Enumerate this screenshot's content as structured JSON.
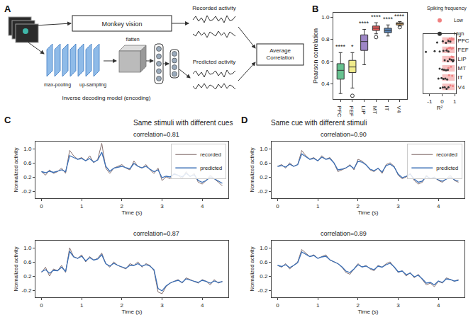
{
  "figure": {
    "panel_labels": [
      "A",
      "B",
      "C",
      "D"
    ]
  },
  "diagram": {
    "center_box": "Monkey vision",
    "outputs": {
      "recorded": "Recorded activity",
      "predicted": "Predicted activity"
    },
    "end_box": "Average Correlation",
    "layers": [
      "max-pooling",
      "up-sampling",
      "flatten"
    ],
    "caption": "Inverse decoding model (encoding)"
  },
  "chart_data": [
    {
      "type": "box",
      "ylabel": "Pearson correlation",
      "categories": [
        "PFC",
        "FEF",
        "LIP",
        "MT",
        "IT",
        "V4"
      ],
      "colors": [
        "#66c28f",
        "#f1ec8c",
        "#9d86c6",
        "#e65c5c",
        "#5b86b8",
        "#f0b46a"
      ],
      "boxes": [
        {
          "lower": 0.31,
          "q1": 0.44,
          "median": 0.52,
          "q3": 0.58,
          "upper": 0.68,
          "outliers": []
        },
        {
          "lower": 0.36,
          "q1": 0.5,
          "median": 0.55,
          "q3": 0.61,
          "upper": 0.68,
          "outliers": [
            0.29
          ]
        },
        {
          "lower": 0.57,
          "q1": 0.7,
          "median": 0.78,
          "q3": 0.84,
          "upper": 0.89,
          "outliers": []
        },
        {
          "lower": 0.85,
          "q1": 0.88,
          "median": 0.9,
          "q3": 0.92,
          "upper": 0.95,
          "outliers": [
            0.82
          ]
        },
        {
          "lower": 0.83,
          "q1": 0.86,
          "median": 0.88,
          "q3": 0.9,
          "upper": 0.93,
          "outliers": []
        },
        {
          "lower": 0.92,
          "q1": 0.93,
          "median": 0.94,
          "q3": 0.95,
          "upper": 0.96,
          "outliers": [
            0.91
          ]
        }
      ],
      "annotations": [
        "****",
        "*",
        "****",
        "****",
        "****",
        "****"
      ],
      "ylim": [
        0.26,
        1.04
      ],
      "yticks": [
        0.4,
        0.6,
        0.8,
        {
          "value": 1,
          "label": "1.0"
        }
      ]
    },
    {
      "type": "strip",
      "legend_title": "Spiking frequency",
      "legend": "upper right",
      "xlabel": "R²",
      "categories": [
        "PFC",
        "FEF",
        "LIP",
        "MT",
        "IT",
        "V4"
      ],
      "xlim": [
        -1.5,
        1.1
      ],
      "xticks": [
        -1,
        0,
        1
      ],
      "highlight_range": [
        0,
        1
      ],
      "highlight_color": "#f6c2c2",
      "series": [
        {
          "name": "Low",
          "color": "#f08080",
          "x": [
            0.45,
            0.6,
            0.7,
            0.75,
            0.8,
            0.85,
            0.9,
            0.4,
            0.55,
            0.65,
            0.75,
            0.85,
            0.6,
            0.75,
            0.85,
            0.5,
            0.7,
            0.55,
            0.8,
            0.65,
            0.85
          ],
          "y": [
            "PFC",
            "PFC",
            "PFC",
            "PFC",
            "PFC",
            "PFC",
            "PFC",
            "FEF",
            "FEF",
            "FEF",
            "FEF",
            "FEF",
            "LIP",
            "LIP",
            "LIP",
            "MT",
            "MT",
            "IT",
            "IT",
            "V4",
            "V4"
          ]
        },
        {
          "name": "High",
          "color": "#333333",
          "x": [
            -0.4,
            0.05,
            0.3,
            0.5,
            0.65,
            -1.3,
            -0.6,
            -0.2,
            0.1,
            0.35,
            0.5,
            0.2,
            0.45,
            0.6,
            0.75,
            0.85,
            0.9,
            -0.2,
            0.0,
            0.15,
            0.3,
            0.45,
            -0.3,
            -0.05,
            0.1,
            0.25,
            0.4,
            -0.15,
            0.05,
            0.2,
            0.35,
            0.5
          ],
          "y": [
            "PFC",
            "PFC",
            "PFC",
            "PFC",
            "PFC",
            "FEF",
            "FEF",
            "FEF",
            "FEF",
            "FEF",
            "FEF",
            "LIP",
            "LIP",
            "LIP",
            "LIP",
            "LIP",
            "LIP",
            "MT",
            "MT",
            "MT",
            "MT",
            "MT",
            "IT",
            "IT",
            "IT",
            "IT",
            "IT",
            "V4",
            "V4",
            "V4",
            "V4",
            "V4"
          ]
        }
      ]
    },
    {
      "type": "line",
      "group_title": "Same stimuli with different cues",
      "title": "correlation=0.81",
      "xlabel": "Time (s)",
      "ylabel": "Normalized activity",
      "legend": "upper right",
      "x": [
        0,
        0.1,
        0.2,
        0.3,
        0.4,
        0.5,
        0.6,
        0.7,
        0.8,
        0.9,
        1,
        1.1,
        1.2,
        1.3,
        1.4,
        1.5,
        1.6,
        1.7,
        1.8,
        1.9,
        2,
        2.1,
        2.2,
        2.3,
        2.4,
        2.5,
        2.6,
        2.7,
        2.8,
        2.9,
        3,
        3.1,
        3.2,
        3.3,
        3.4,
        3.5,
        3.6,
        3.7,
        3.8,
        3.9,
        4,
        4.1,
        4.2,
        4.3,
        4.4,
        4.5
      ],
      "xlim": [
        -0.15,
        4.65
      ],
      "xticks": [
        0,
        1,
        2,
        3,
        4
      ],
      "ylim": [
        -0.4,
        1.2
      ],
      "yticks": [
        -0.2,
        0.2,
        0.6,
        {
          "value": 1,
          "label": "1.0"
        }
      ],
      "series": [
        {
          "name": "recorded",
          "color": "#86706f",
          "values": [
            0.35,
            0.25,
            0.4,
            0.3,
            0.35,
            0.45,
            0.3,
            0.95,
            0.8,
            0.7,
            0.75,
            0.65,
            0.8,
            0.6,
            0.7,
            1.15,
            0.45,
            0.3,
            0.45,
            0.5,
            0.55,
            0.45,
            0.4,
            0.65,
            0.5,
            0.45,
            0.55,
            0.4,
            0.3,
            0.45,
            0.1,
            0.2,
            0.15,
            0.3,
            0.25,
            0.15,
            0.35,
            0.2,
            0.3,
            0.05,
            0.0,
            0.1,
            0.25,
            0.15,
            0.05,
            -0.05
          ]
        },
        {
          "name": "predicted",
          "color": "#3b6fb6",
          "values": [
            0.35,
            0.32,
            0.36,
            0.33,
            0.36,
            0.4,
            0.35,
            0.8,
            0.75,
            0.7,
            0.72,
            0.66,
            0.72,
            0.62,
            0.68,
            0.9,
            0.5,
            0.36,
            0.45,
            0.48,
            0.5,
            0.46,
            0.43,
            0.58,
            0.5,
            0.46,
            0.5,
            0.42,
            0.35,
            0.4,
            0.18,
            0.22,
            0.2,
            0.28,
            0.25,
            0.2,
            0.3,
            0.22,
            0.26,
            0.1,
            0.05,
            0.1,
            0.2,
            0.15,
            0.08,
            0.02
          ]
        }
      ]
    },
    {
      "type": "line",
      "title": "correlation=0.87",
      "xlabel": "Time (s)",
      "ylabel": "Normalized activity",
      "x": [
        0,
        0.1,
        0.2,
        0.3,
        0.4,
        0.5,
        0.6,
        0.7,
        0.8,
        0.9,
        1,
        1.1,
        1.2,
        1.3,
        1.4,
        1.5,
        1.6,
        1.7,
        1.8,
        1.9,
        2,
        2.1,
        2.2,
        2.3,
        2.4,
        2.5,
        2.6,
        2.7,
        2.8,
        2.9,
        3,
        3.1,
        3.2,
        3.3,
        3.4,
        3.5,
        3.6,
        3.7,
        3.8,
        3.9,
        4,
        4.1,
        4.2,
        4.3,
        4.4,
        4.5
      ],
      "xlim": [
        -0.15,
        4.65
      ],
      "xticks": [
        0,
        1,
        2,
        3,
        4
      ],
      "ylim": [
        -0.4,
        1.2
      ],
      "yticks": [
        -0.2,
        0.2,
        0.6,
        {
          "value": 1,
          "label": "1.0"
        }
      ],
      "series": [
        {
          "name": "recorded",
          "color": "#86706f",
          "values": [
            0.3,
            0.45,
            0.2,
            0.4,
            0.35,
            0.5,
            0.3,
            1.0,
            0.75,
            0.7,
            0.8,
            0.6,
            0.75,
            0.65,
            0.7,
            0.85,
            0.55,
            0.45,
            0.6,
            0.5,
            0.45,
            0.4,
            0.55,
            0.5,
            0.6,
            0.45,
            0.55,
            0.5,
            0.35,
            -0.25,
            -0.3,
            -0.1,
            0.0,
            0.05,
            0.1,
            0.0,
            0.15,
            0.1,
            0.05,
            0.0,
            0.1,
            0.05,
            -0.05,
            0.1,
            0.0,
            0.05
          ]
        },
        {
          "name": "predicted",
          "color": "#3b6fb6",
          "values": [
            0.32,
            0.38,
            0.28,
            0.36,
            0.35,
            0.45,
            0.33,
            0.9,
            0.74,
            0.7,
            0.76,
            0.63,
            0.72,
            0.65,
            0.68,
            0.8,
            0.55,
            0.48,
            0.56,
            0.5,
            0.46,
            0.42,
            0.5,
            0.5,
            0.55,
            0.48,
            0.52,
            0.48,
            0.38,
            -0.15,
            -0.22,
            -0.08,
            0.0,
            0.05,
            0.08,
            0.02,
            0.12,
            0.08,
            0.05,
            0.02,
            0.08,
            0.05,
            0.0,
            0.06,
            0.02,
            0.04
          ]
        }
      ]
    },
    {
      "type": "line",
      "group_title": "Same cue with different stimuli",
      "title": "correlation=0.90",
      "xlabel": "Time (s)",
      "ylabel": "Normalized activity",
      "legend": "upper right",
      "x": [
        0,
        0.1,
        0.2,
        0.3,
        0.4,
        0.5,
        0.6,
        0.7,
        0.8,
        0.9,
        1,
        1.1,
        1.2,
        1.3,
        1.4,
        1.5,
        1.6,
        1.7,
        1.8,
        1.9,
        2,
        2.1,
        2.2,
        2.3,
        2.4,
        2.5,
        2.6,
        2.7,
        2.8,
        2.9,
        3,
        3.1,
        3.2,
        3.3,
        3.4,
        3.5,
        3.6,
        3.7,
        3.8,
        3.9,
        4,
        4.1,
        4.2,
        4.3,
        4.4,
        4.5
      ],
      "xlim": [
        -0.15,
        4.65
      ],
      "xticks": [
        0,
        1,
        2,
        3,
        4
      ],
      "ylim": [
        -0.4,
        1.2
      ],
      "yticks": [
        -0.2,
        0.2,
        0.6,
        {
          "value": 1,
          "label": "1.0"
        }
      ],
      "series": [
        {
          "name": "recorded",
          "color": "#86706f",
          "values": [
            0.5,
            0.55,
            0.45,
            0.6,
            0.5,
            0.55,
            0.95,
            0.8,
            0.7,
            0.75,
            0.65,
            0.8,
            0.7,
            0.75,
            0.6,
            0.35,
            0.4,
            0.45,
            0.55,
            0.4,
            0.7,
            0.65,
            0.55,
            0.4,
            0.35,
            0.45,
            0.3,
            0.55,
            0.6,
            0.5,
            0.25,
            0.15,
            0.2,
            0.3,
            0.1,
            0.0,
            0.05,
            0.25,
            0.15,
            0.2,
            0.1,
            0.05,
            0.15,
            0.25,
            0.1,
            0.05
          ]
        },
        {
          "name": "predicted",
          "color": "#3b6fb6",
          "values": [
            0.5,
            0.52,
            0.48,
            0.56,
            0.5,
            0.55,
            0.85,
            0.78,
            0.7,
            0.72,
            0.66,
            0.76,
            0.7,
            0.72,
            0.6,
            0.4,
            0.42,
            0.46,
            0.52,
            0.44,
            0.64,
            0.62,
            0.54,
            0.42,
            0.38,
            0.44,
            0.34,
            0.52,
            0.56,
            0.48,
            0.28,
            0.18,
            0.22,
            0.28,
            0.14,
            0.05,
            0.08,
            0.22,
            0.16,
            0.18,
            0.12,
            0.08,
            0.14,
            0.2,
            0.12,
            0.08
          ]
        }
      ]
    },
    {
      "type": "line",
      "title": "correlation=0.89",
      "xlabel": "Time (s)",
      "ylabel": "Normalized activity",
      "x": [
        0,
        0.1,
        0.2,
        0.3,
        0.4,
        0.5,
        0.6,
        0.7,
        0.8,
        0.9,
        1,
        1.1,
        1.2,
        1.3,
        1.4,
        1.5,
        1.6,
        1.7,
        1.8,
        1.9,
        2,
        2.1,
        2.2,
        2.3,
        2.4,
        2.5,
        2.6,
        2.7,
        2.8,
        2.9,
        3,
        3.1,
        3.2,
        3.3,
        3.4,
        3.5,
        3.6,
        3.7,
        3.8,
        3.9,
        4,
        4.1,
        4.2,
        4.3,
        4.4,
        4.5
      ],
      "xlim": [
        -0.15,
        4.65
      ],
      "xticks": [
        0,
        1,
        2,
        3,
        4
      ],
      "ylim": [
        -0.4,
        1.2
      ],
      "yticks": [
        -0.2,
        0.2,
        0.6,
        {
          "value": 1,
          "label": "1.0"
        }
      ],
      "series": [
        {
          "name": "recorded",
          "color": "#86706f",
          "values": [
            0.5,
            0.45,
            0.55,
            0.4,
            0.5,
            0.6,
            0.95,
            0.85,
            0.75,
            0.8,
            0.7,
            0.75,
            0.8,
            0.65,
            0.6,
            0.55,
            0.45,
            0.3,
            0.25,
            0.4,
            0.55,
            0.45,
            0.5,
            0.4,
            0.35,
            0.5,
            0.45,
            0.55,
            0.6,
            0.45,
            0.3,
            0.35,
            0.2,
            0.3,
            0.15,
            0.25,
            0.1,
            -0.05,
            0.0,
            -0.1,
            0.05,
            0.0,
            0.15,
            0.1,
            0.05,
            0.1
          ]
        },
        {
          "name": "predicted",
          "color": "#3b6fb6",
          "values": [
            0.5,
            0.47,
            0.52,
            0.44,
            0.5,
            0.58,
            0.88,
            0.82,
            0.75,
            0.78,
            0.7,
            0.74,
            0.76,
            0.66,
            0.6,
            0.55,
            0.46,
            0.34,
            0.3,
            0.4,
            0.52,
            0.46,
            0.48,
            0.42,
            0.38,
            0.48,
            0.45,
            0.52,
            0.56,
            0.46,
            0.32,
            0.34,
            0.24,
            0.28,
            0.18,
            0.22,
            0.12,
            0.0,
            0.02,
            -0.05,
            0.06,
            0.02,
            0.12,
            0.1,
            0.06,
            0.08
          ]
        }
      ]
    }
  ]
}
